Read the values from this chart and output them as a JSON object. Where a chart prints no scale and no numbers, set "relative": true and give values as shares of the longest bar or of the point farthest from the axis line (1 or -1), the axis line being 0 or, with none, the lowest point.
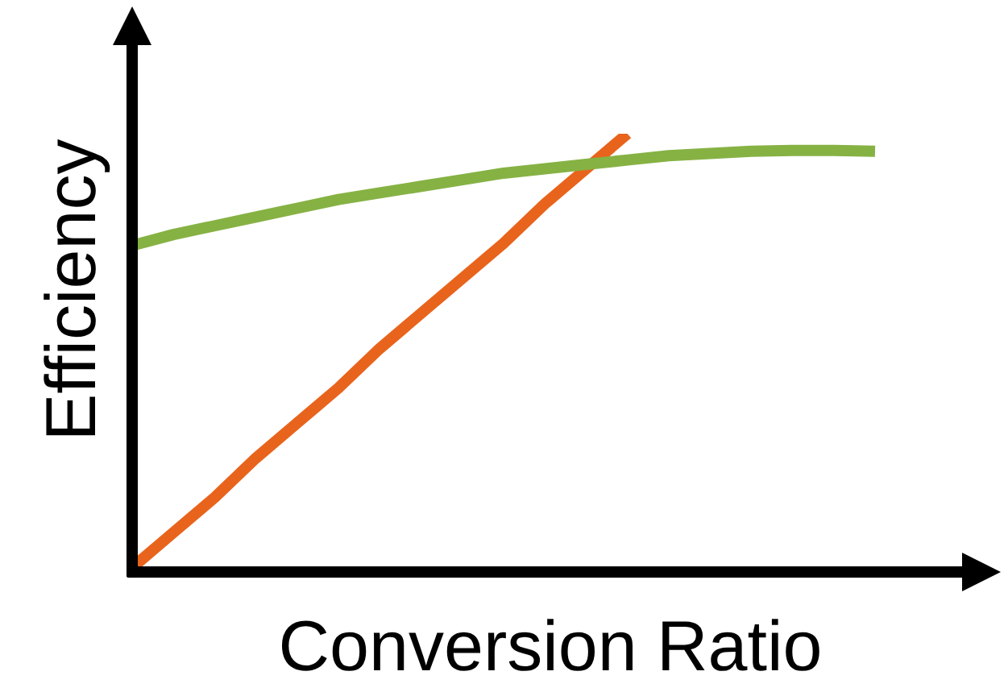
{
  "chart_data": {
    "type": "line",
    "relative": true,
    "xlabel": "Conversion Ratio",
    "ylabel": "Efficiency",
    "grid": false,
    "legend": false,
    "marker": "none",
    "line_style": "solid",
    "categories": [
      null,
      null,
      null,
      null,
      null,
      null,
      null,
      null,
      null,
      null,
      null,
      null,
      null,
      null,
      null,
      null,
      null,
      null,
      null
    ],
    "series": [
      {
        "color": "#e8641c",
        "values": [
          0.01,
          0.09,
          0.17,
          0.26,
          0.34,
          0.42,
          0.51,
          0.59,
          0.67,
          0.75,
          0.84,
          0.92,
          1,
          null,
          null,
          null,
          null,
          null,
          null
        ]
      },
      {
        "color": "#86b244",
        "values": [
          0.745,
          0.77,
          0.79,
          0.81,
          0.83,
          0.85,
          0.865,
          0.88,
          0.895,
          0.91,
          0.92,
          0.93,
          0.94,
          0.95,
          0.955,
          0.96,
          0.962,
          0.962,
          0.96
        ]
      }
    ]
  }
}
